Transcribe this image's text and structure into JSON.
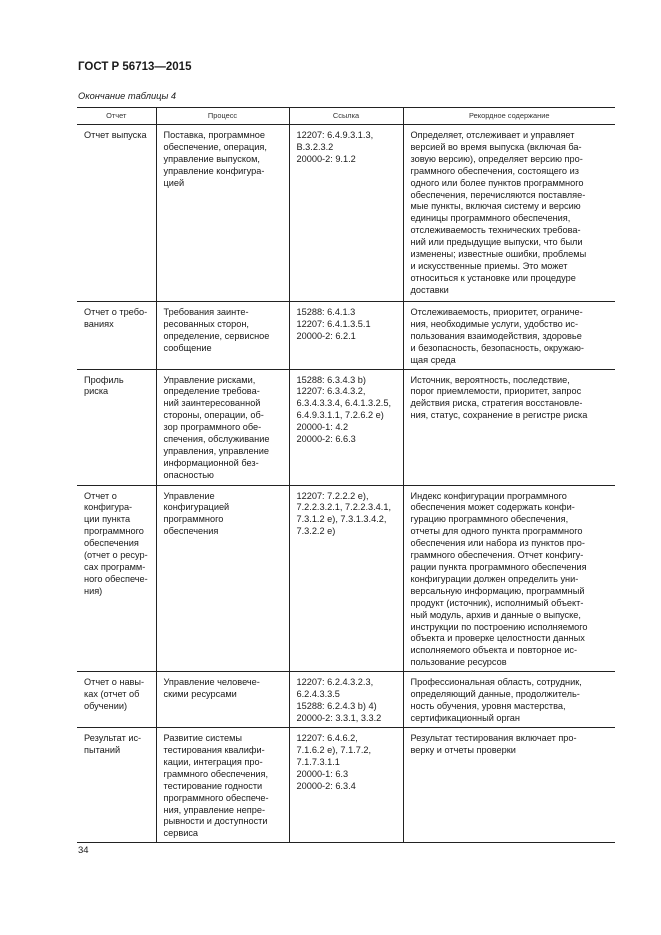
{
  "header": {
    "standard": "ГОСТ Р 56713—2015",
    "caption": "Окончание таблицы 4"
  },
  "table": {
    "columns": [
      "Отчет",
      "Процесс",
      "Ссылка",
      "Рекордное содержание"
    ],
    "rows": [
      {
        "report": "Отчет выпуска",
        "process": "Поставка, программное\nобеспечение, операция,\nуправление выпуском,\nуправление конфигура-\nцией",
        "reference": "12207: 6.4.9.3.1.3,\nB.3.2.3.2\n20000-2: 9.1.2",
        "content": "Определяет, отслеживает и управляет\nверсией во время выпуска (включая ба-\nзовую версию), определяет версию про-\nграммного обеспечения, состоящего из\nодного или более пунктов программного\nобеспечения, перечисляются поставляе-\nмые пункты, включая систему и версию\nединицы программного обеспечения,\nотслеживаемость технических требова-\nний или предыдущие выпуски, что были\nизменены; известные ошибки, проблемы\nи искусственные приемы. Это может\nотноситься к установке или процедуре\nдоставки"
      },
      {
        "report": "Отчет о требо-\nваниях",
        "process": "Требования заинте-\nресованных сторон,\nопределение, сервисное\nсообщение",
        "reference": "15288: 6.4.1.3\n12207: 6.4.1.3.5.1\n20000-2: 6.2.1",
        "content": "Отслеживаемость, приоритет, ограниче-\nния, необходимые услуги, удобство ис-\nпользования взаимодействия, здоровье\nи безопасность, безопасность, окружаю-\nщая среда"
      },
      {
        "report": "Профиль\nриска",
        "process": "Управление рисками,\nопределение требова-\nний заинтересованной\nстороны, операции, об-\nзор программного обе-\nспечения, обслуживание\nуправления, управление\nинформационной без-\nопасностью",
        "reference": "15288: 6.3.4.3 b)\n12207: 6.3.4.3.2,\n6.3.4.3.3.4, 6.4.1.3.2.5,\n6.4.9.3.1.1, 7.2.6.2 e)\n20000-1: 4.2\n20000-2: 6.6.3",
        "content": "Источник, вероятность, последствие,\nпорог приемлемости, приоритет, запрос\nдействия риска, стратегия восстановле-\nния, статус, сохранение в регистре риска"
      },
      {
        "report": "Отчет о\nконфигура-\nции пункта\nпрограммного\nобеспечения\n(отчет о ресур-\nсах программ-\nного обеспече-\nния)",
        "process": "Управление\nконфигурацией\nпрограммного\nобеспечения",
        "reference": "12207: 7.2.2.2 e),\n7.2.2.3.2.1, 7.2.2.3.4.1,\n7.3.1.2 e), 7.3.1.3.4.2,\n7.3.2.2 e)",
        "content": "Индекс конфигурации программного\nобеспечения может содержать конфи-\nгурацию программного обеспечения,\nотчеты для одного пункта программного\nобеспечения или набора из пунктов про-\nграммного обеспечения. Отчет конфигу-\nрации пункта программного обеспечения\nконфигурации должен определить уни-\nверсальную информацию, программный\nпродукт (источник), исполнимый объект-\nный модуль, архив и данные о выпуске,\nинструкции по построению исполняемого\nобъекта и проверке целостности данных\nисполняемого объекта и повторное ис-\nпользование ресурсов"
      },
      {
        "report": "Отчет о навы-\nках (отчет об\nобучении)",
        "process": "Управление человече-\nскими ресурсами",
        "reference": "12207: 6.2.4.3.2.3,\n6.2.4.3.3.5\n15288: 6.2.4.3 b) 4)\n20000-2: 3.3.1, 3.3.2",
        "content": "Профессиональная область, сотрудник,\nопределяющий данные, продолжитель-\nность обучения, уровня мастерства,\nсертификационный орган"
      },
      {
        "report": "Результат ис-\nпытаний",
        "process": "Развитие системы\nтестирования квалифи-\nкации, интеграция про-\nграммного обеспечения,\nтестирование годности\nпрограммного обеспече-\nния, управление непре-\nрывности и доступности\nсервиса",
        "reference": "12207: 6.4.6.2,\n7.1.6.2 e), 7.1.7.2,\n7.1.7.3.1.1\n20000-1: 6.3\n20000-2: 6.3.4",
        "content": "Результат тестирования включает про-\nверку и отчеты проверки"
      }
    ]
  },
  "footer": {
    "page_number": "34"
  }
}
